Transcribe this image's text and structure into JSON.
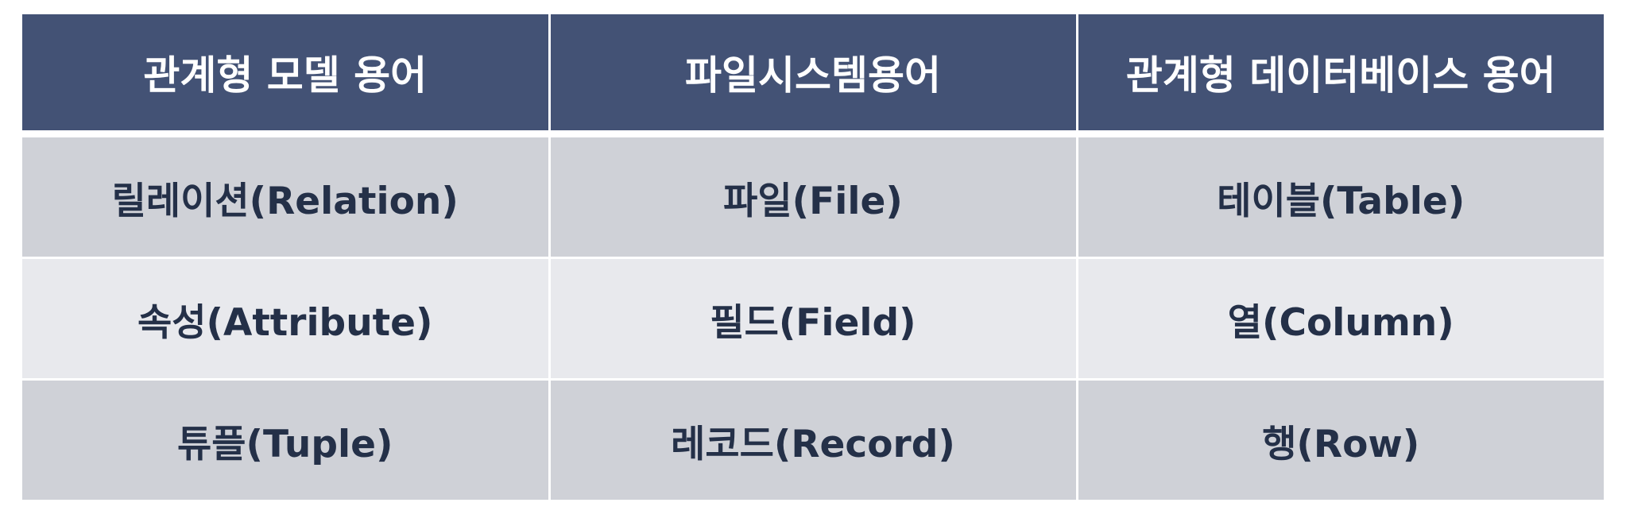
{
  "table": {
    "headers": [
      "관계형 모델 용어",
      "파일시스템용어",
      "관계형 데이터베이스 용어"
    ],
    "rows": [
      [
        "릴레이션(Relation)",
        "파일(File)",
        "테이블(Table)"
      ],
      [
        "속성(Attribute)",
        "필드(Field)",
        "열(Column)"
      ],
      [
        "튜플(Tuple)",
        "레코드(Record)",
        "행(Row)"
      ]
    ]
  },
  "colors": {
    "header_bg": "#435275",
    "header_text": "#ffffff",
    "row_dark_bg": "#cfd1d7",
    "row_light_bg": "#e8e9ed",
    "body_text": "#243048"
  }
}
